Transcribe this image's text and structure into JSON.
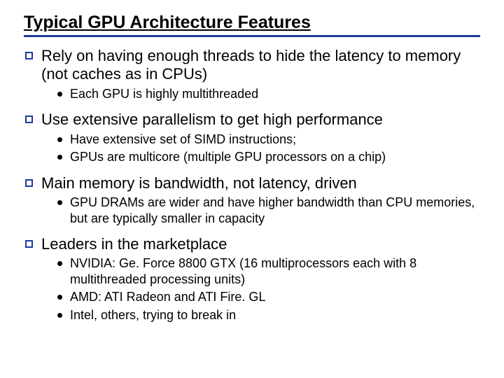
{
  "title": "Typical GPU Architecture Features",
  "colors": {
    "rule": "#1a3c9c",
    "square_border": "#1a3c9c",
    "dot": "#000000",
    "text": "#000000",
    "bg": "#ffffff"
  },
  "items": [
    {
      "text": "Rely on having enough threads to hide the latency to memory (not caches as in CPUs)",
      "sub": [
        "Each GPU is highly multithreaded"
      ]
    },
    {
      "text": "Use extensive parallelism to get high performance",
      "sub": [
        "Have extensive set of SIMD instructions;",
        "GPUs are multicore (multiple GPU processors on a chip)"
      ]
    },
    {
      "text": "Main memory is bandwidth, not latency, driven",
      "sub": [
        "GPU DRAMs are wider and have higher bandwidth than CPU memories, but are typically smaller in capacity"
      ]
    },
    {
      "text": "Leaders in the marketplace",
      "sub": [
        "NVIDIA: Ge. Force 8800 GTX (16 multiprocessors each with 8 multithreaded processing units)",
        "AMD: ATI Radeon and ATI Fire. GL",
        "Intel, others, trying to break in"
      ]
    }
  ]
}
